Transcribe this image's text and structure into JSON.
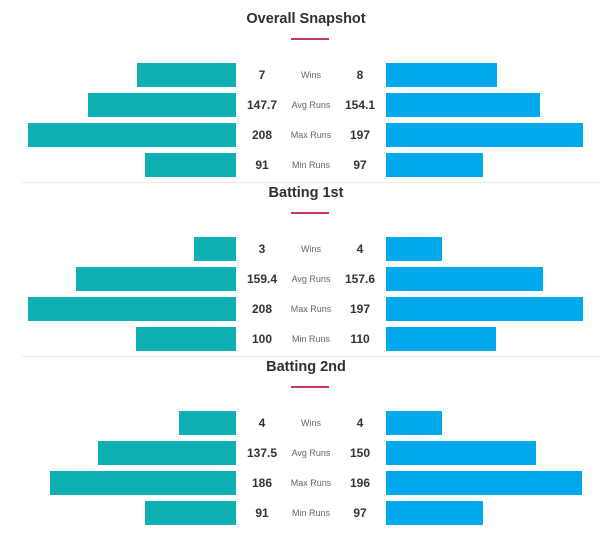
{
  "colors": {
    "team_a": "#0fb0b4",
    "team_b": "#00a9ec",
    "accent": "#c8385e"
  },
  "chart_data": [
    {
      "type": "bar",
      "title": "Overall Snapshot",
      "categories": [
        "Wins",
        "Avg Runs",
        "Max Runs",
        "Min Runs"
      ],
      "series": [
        {
          "values": [
            7,
            147.7,
            208,
            91
          ],
          "labels": [
            "7",
            "147.7",
            "208",
            "91"
          ]
        },
        {
          "values": [
            8,
            154.1,
            197,
            97
          ],
          "labels": [
            "8",
            "154.1",
            "197",
            "97"
          ]
        }
      ]
    },
    {
      "type": "bar",
      "title": "Batting 1st",
      "categories": [
        "Wins",
        "Avg Runs",
        "Max Runs",
        "Min Runs"
      ],
      "series": [
        {
          "values": [
            3,
            159.4,
            208,
            100
          ],
          "labels": [
            "3",
            "159.4",
            "208",
            "100"
          ]
        },
        {
          "values": [
            4,
            157.6,
            197,
            110
          ],
          "labels": [
            "4",
            "157.6",
            "197",
            "110"
          ]
        }
      ]
    },
    {
      "type": "bar",
      "title": "Batting 2nd",
      "categories": [
        "Wins",
        "Avg Runs",
        "Max Runs",
        "Min Runs"
      ],
      "series": [
        {
          "values": [
            4,
            137.5,
            186,
            91
          ],
          "labels": [
            "4",
            "137.5",
            "186",
            "91"
          ]
        },
        {
          "values": [
            4,
            150,
            196,
            97
          ],
          "labels": [
            "4",
            "150",
            "196",
            "97"
          ]
        }
      ]
    }
  ]
}
